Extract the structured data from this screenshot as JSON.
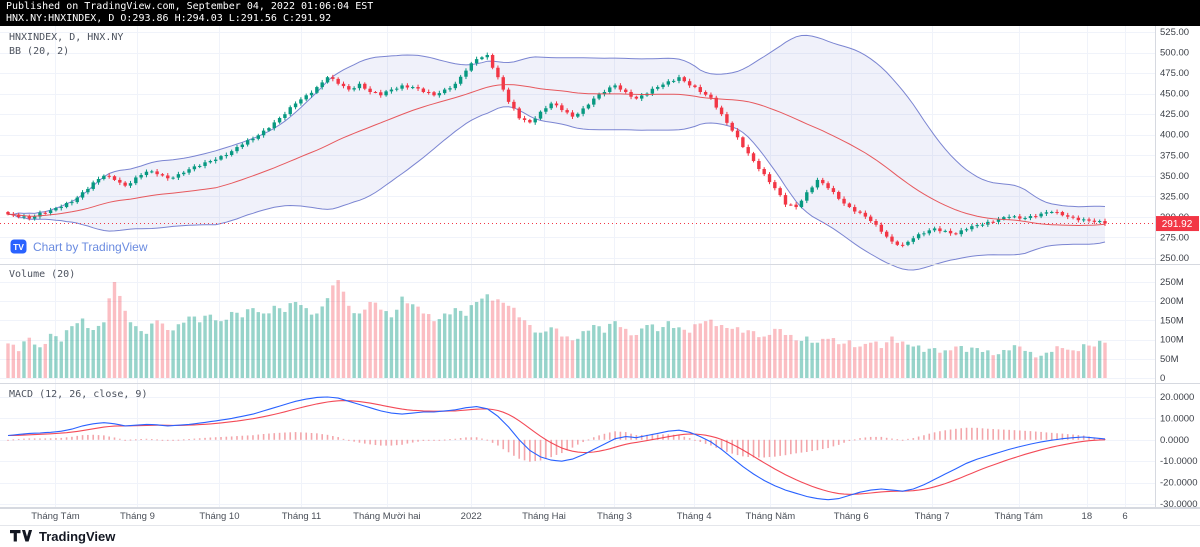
{
  "header": {
    "line1": "Published on TradingView.com, September 04, 2022 01:06:04 EST",
    "line2": "HNX.NY:HNXINDEX, D O:293.86 H:294.03 L:291.56 C:291.92"
  },
  "price_pane": {
    "symbol_label": "HNXINDEX, D, HNX.NY",
    "indicator_label": "BB (20, 2)",
    "watermark": "Chart by TradingView",
    "last_price": "291.92",
    "axis_ticks": [
      "525.00",
      "500.00",
      "475.00",
      "450.00",
      "425.00",
      "400.00",
      "375.00",
      "350.00",
      "325.00",
      "300.00",
      "275.00",
      "250.00"
    ]
  },
  "volume_pane": {
    "label": "Volume (20)",
    "axis_ticks": [
      "250M",
      "200M",
      "150M",
      "100M",
      "50M",
      "0"
    ]
  },
  "macd_pane": {
    "label": "MACD (12, 26, close, 9)",
    "axis_ticks": [
      "20.0000",
      "10.0000",
      "0.0000",
      "-10.0000",
      "-20.0000",
      "-30.0000"
    ]
  },
  "time_axis": {
    "labels": [
      {
        "text": "Tháng Tám",
        "pos": 0.048
      },
      {
        "text": "Tháng 9",
        "pos": 0.119
      },
      {
        "text": "Tháng 10",
        "pos": 0.19
      },
      {
        "text": "Tháng 11",
        "pos": 0.261
      },
      {
        "text": "Tháng Mười hai",
        "pos": 0.335
      },
      {
        "text": "2022",
        "pos": 0.408
      },
      {
        "text": "Tháng Hai",
        "pos": 0.471
      },
      {
        "text": "Tháng 3",
        "pos": 0.532
      },
      {
        "text": "Tháng 4",
        "pos": 0.601
      },
      {
        "text": "Tháng Năm",
        "pos": 0.667
      },
      {
        "text": "Tháng 6",
        "pos": 0.737
      },
      {
        "text": "Tháng 7",
        "pos": 0.807
      },
      {
        "text": "Tháng Tám",
        "pos": 0.882
      },
      {
        "text": "18",
        "pos": 0.941
      },
      {
        "text": "6",
        "pos": 0.974
      }
    ]
  },
  "footer": {
    "brand": "TradingView"
  },
  "colors": {
    "up": "#089981",
    "down": "#f23645",
    "vol_up": "rgba(8,153,129,0.42)",
    "vol_down": "rgba(242,54,69,0.32)",
    "bb_band": "#5b68c7",
    "bb_fill": "rgba(91,104,199,0.09)",
    "bb_basis": "#e5484d",
    "macd": "#2962ff",
    "signal": "#f23645",
    "hist": "#f3a6ab",
    "grid": "#f0f3fa",
    "border": "#d6d9e0",
    "axis_text": "#3c4048",
    "last_price": "#f23645"
  },
  "chart_data": {
    "type": "candlestick",
    "symbol": "HNX.NY:HNXINDEX",
    "interval": "D",
    "title": "HNXINDEX, D, HNX.NY",
    "x_range": [
      "Aug 2021",
      "Sep 2022"
    ],
    "panes": [
      {
        "name": "price",
        "ylim": [
          250,
          525
        ],
        "series": [
          "HNXINDEX candles",
          "BB(20,2) upper",
          "BB(20,2) basis",
          "BB(20,2) lower"
        ],
        "grid": true,
        "legend_position": "top-left"
      },
      {
        "name": "volume",
        "ylim": [
          0,
          250
        ],
        "unit": "M",
        "series": [
          "Volume"
        ],
        "grid": true
      },
      {
        "name": "macd",
        "ylim": [
          -30,
          20
        ],
        "series": [
          "MACD line",
          "Signal line",
          "Histogram"
        ],
        "grid": true
      }
    ],
    "last": {
      "o": 293.86,
      "h": 294.03,
      "l": 291.56,
      "c": 291.92
    },
    "closes": [
      303,
      300,
      298,
      305,
      308,
      312,
      318,
      330,
      342,
      350,
      345,
      338,
      348,
      355,
      352,
      347,
      352,
      358,
      362,
      368,
      374,
      380,
      388,
      395,
      405,
      415,
      425,
      438,
      448,
      458,
      470,
      462,
      455,
      462,
      452,
      448,
      455,
      460,
      458,
      452,
      448,
      455,
      462,
      478,
      492,
      497,
      470,
      440,
      420,
      415,
      428,
      438,
      430,
      422,
      432,
      444,
      452,
      460,
      452,
      444,
      450,
      458,
      465,
      470,
      460,
      452,
      445,
      425,
      405,
      385,
      368,
      352,
      335,
      315,
      312,
      330,
      345,
      335,
      322,
      312,
      305,
      295,
      282,
      270,
      266,
      274,
      280,
      286,
      283,
      279,
      285,
      290,
      294,
      297,
      300,
      298,
      301,
      304,
      306,
      302,
      299,
      297,
      294,
      291.92
    ],
    "volumes_m": [
      90,
      70,
      105,
      80,
      115,
      95,
      135,
      155,
      125,
      145,
      250,
      175,
      135,
      115,
      150,
      125,
      140,
      160,
      145,
      165,
      148,
      172,
      158,
      182,
      168,
      188,
      172,
      198,
      182,
      168,
      208,
      255,
      188,
      168,
      198,
      178,
      158,
      212,
      192,
      168,
      148,
      168,
      182,
      162,
      198,
      218,
      205,
      188,
      158,
      138,
      118,
      132,
      108,
      98,
      122,
      138,
      118,
      148,
      128,
      112,
      138,
      122,
      148,
      132,
      118,
      142,
      152,
      138,
      128,
      118,
      122,
      108,
      128,
      112,
      98,
      108,
      92,
      102,
      88,
      98,
      82,
      92,
      78,
      108,
      95,
      82,
      68,
      78,
      72,
      82,
      68,
      78,
      72,
      62,
      72,
      82,
      68,
      58,
      68,
      78,
      72,
      88,
      82,
      92
    ],
    "macd_line": [
      2,
      2.5,
      3,
      3.2,
      3.5,
      4,
      5,
      6.5,
      7.5,
      8,
      7.5,
      6.5,
      6.8,
      7.2,
      7,
      6.5,
      6.8,
      7.2,
      7.8,
      8.5,
      9.2,
      10,
      11,
      12,
      13.5,
      15,
      16.5,
      18,
      19,
      19.8,
      20,
      19.5,
      18,
      16.5,
      15,
      13.5,
      12.5,
      12,
      12.5,
      13,
      13,
      13.5,
      14,
      15,
      15.5,
      14.5,
      11,
      6,
      0,
      -5,
      -8,
      -9.5,
      -10,
      -9,
      -7,
      -4.5,
      -2,
      0.5,
      1.5,
      1,
      2,
      3,
      4,
      4.5,
      3.5,
      1.5,
      -1,
      -4.5,
      -8.5,
      -12.5,
      -16,
      -19,
      -21.5,
      -23.5,
      -25,
      -26.5,
      -27.5,
      -28,
      -27.5,
      -26,
      -24.5,
      -23.5,
      -23,
      -23.5,
      -24,
      -23,
      -21,
      -18.5,
      -16,
      -13.5,
      -11,
      -9,
      -7.5,
      -6,
      -4.5,
      -3.2,
      -2,
      -1,
      -0.2,
      0.5,
      1,
      1.3,
      0.9,
      0.4
    ],
    "render": {
      "subdivide": 2,
      "close_noise": 2.0,
      "volume_noise": 10,
      "wick_base": 1.2,
      "wick_var": 1.8,
      "bb_window": 40,
      "bb_mult": 2,
      "signal_ema": 12
    }
  }
}
